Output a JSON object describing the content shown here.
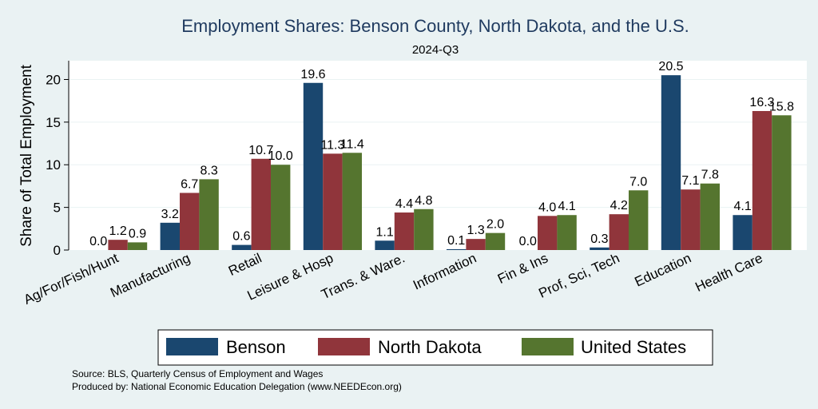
{
  "chart_data": {
    "type": "bar",
    "title": "Employment Shares: Benson County, North Dakota, and the U.S.",
    "subtitle": "2024-Q3",
    "ylabel": "Share of Total Employment",
    "xlabel": "",
    "ylim": [
      0,
      22.2
    ],
    "yticks": [
      0,
      5,
      10,
      15,
      20
    ],
    "grid": true,
    "legend_position": "bottom",
    "categories": [
      "Ag/For/Fish/Hunt",
      "Manufacturing",
      "Retail",
      "Leisure & Hosp",
      "Trans. & Ware.",
      "Information",
      "Fin & Ins",
      "Prof, Sci, Tech",
      "Education",
      "Health Care"
    ],
    "series": [
      {
        "name": "Benson",
        "color": "#1a476f",
        "values": [
          0.0,
          3.2,
          0.6,
          19.6,
          1.1,
          0.1,
          0.0,
          0.3,
          20.5,
          4.1
        ],
        "labels": [
          "0.0",
          "3.2",
          "0.6",
          "19.6",
          "1.1",
          "0.1",
          "0.0",
          "0.3",
          "20.5",
          "4.1"
        ]
      },
      {
        "name": "North Dakota",
        "color": "#90353b",
        "values": [
          1.2,
          6.7,
          10.7,
          11.3,
          4.4,
          1.3,
          4.0,
          4.2,
          7.1,
          16.3
        ],
        "labels": [
          "1.2",
          "6.7",
          "10.7",
          "11.3",
          "4.4",
          "1.3",
          "4.0",
          "4.2",
          "7.1",
          "16.3"
        ]
      },
      {
        "name": "United States",
        "color": "#55752f",
        "values": [
          0.9,
          8.3,
          10.0,
          11.4,
          4.8,
          2.0,
          4.1,
          7.0,
          7.8,
          15.8
        ],
        "labels": [
          "0.9",
          "8.3",
          "10.0",
          "11.4",
          "4.8",
          "2.0",
          "4.1",
          "7.0",
          "7.8",
          "15.8"
        ]
      }
    ]
  },
  "notes": {
    "source": "Source: BLS, Quarterly Census of Employment and Wages",
    "produced": "Produced by: National Economic Education Delegation (www.NEEDEcon.org)"
  }
}
